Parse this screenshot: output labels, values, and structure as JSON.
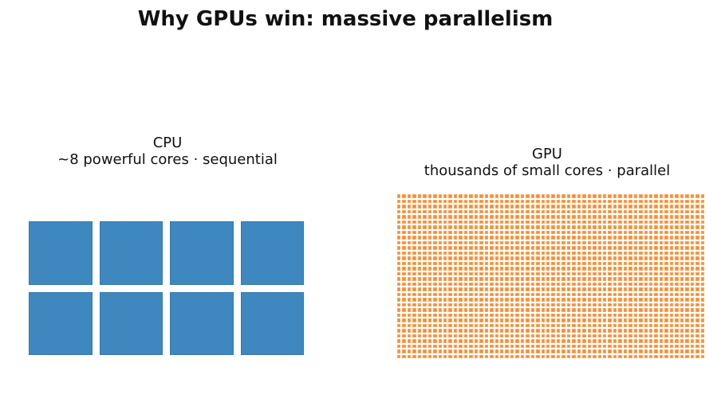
{
  "title": "Why GPUs win: massive parallelism",
  "cpu": {
    "title_line1": "CPU",
    "title_line2": "~8 powerful cores · sequential",
    "rows": 2,
    "cols": 4,
    "core_color": "#3f88bf"
  },
  "gpu": {
    "title_line1": "GPU",
    "title_line2": "thousands of small cores · parallel",
    "rows": 32,
    "cols": 60,
    "core_color": "#fd8d2b"
  }
}
